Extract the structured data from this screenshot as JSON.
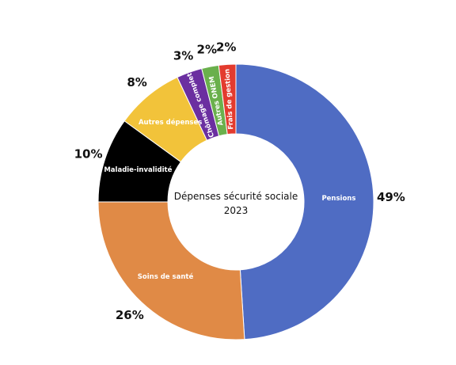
{
  "chart_data": {
    "type": "pie",
    "donut": true,
    "center_text": [
      "Dépenses sécurité sociale",
      "2023"
    ],
    "categories": [
      "Pensions",
      "Soins de santé",
      "Maladie-invalidité",
      "Autres dépenses",
      "Chômage complet",
      "Autres ONEM",
      "Frais de gestion"
    ],
    "values": [
      49,
      26,
      10,
      8,
      3,
      2,
      2
    ],
    "value_labels": [
      "49%",
      "26%",
      "10%",
      "8%",
      "3%",
      "2%",
      "2%"
    ],
    "colors": [
      "#4f6cc3",
      "#e08a46",
      "#000000",
      "#f2c33a",
      "#6b2fa0",
      "#6ab04c",
      "#e33b2e"
    ],
    "label_colors": [
      "#ffffff",
      "#ffffff",
      "#ffffff",
      "#ffffff",
      "#ffffff",
      "#ffffff",
      "#ffffff"
    ],
    "start_angle_deg": 0,
    "direction": "clockwise",
    "legend": "none"
  }
}
